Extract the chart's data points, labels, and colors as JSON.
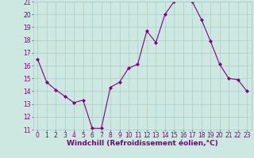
{
  "x": [
    0,
    1,
    2,
    3,
    4,
    5,
    6,
    7,
    8,
    9,
    10,
    11,
    12,
    13,
    14,
    15,
    16,
    17,
    18,
    19,
    20,
    21,
    22,
    23
  ],
  "y": [
    16.5,
    14.7,
    14.1,
    13.6,
    13.1,
    13.3,
    11.1,
    11.1,
    14.3,
    14.7,
    15.8,
    16.1,
    18.7,
    17.8,
    20.0,
    21.0,
    21.2,
    21.0,
    19.6,
    17.9,
    16.1,
    15.0,
    14.9,
    14.0
  ],
  "line_color": "#800080",
  "marker": "D",
  "marker_size": 2.0,
  "bg_color": "#cce8e0",
  "grid_color": "#aacccc",
  "xlabel": "Windchill (Refroidissement éolien,°C)",
  "ylim": [
    11,
    21
  ],
  "yticks": [
    11,
    12,
    13,
    14,
    15,
    16,
    17,
    18,
    19,
    20,
    21
  ],
  "xticks": [
    0,
    1,
    2,
    3,
    4,
    5,
    6,
    7,
    8,
    9,
    10,
    11,
    12,
    13,
    14,
    15,
    16,
    17,
    18,
    19,
    20,
    21,
    22,
    23
  ],
  "tick_color": "#800080",
  "label_color": "#800080",
  "tick_fontsize": 5.5,
  "xlabel_fontsize": 6.5,
  "line_width": 0.8
}
